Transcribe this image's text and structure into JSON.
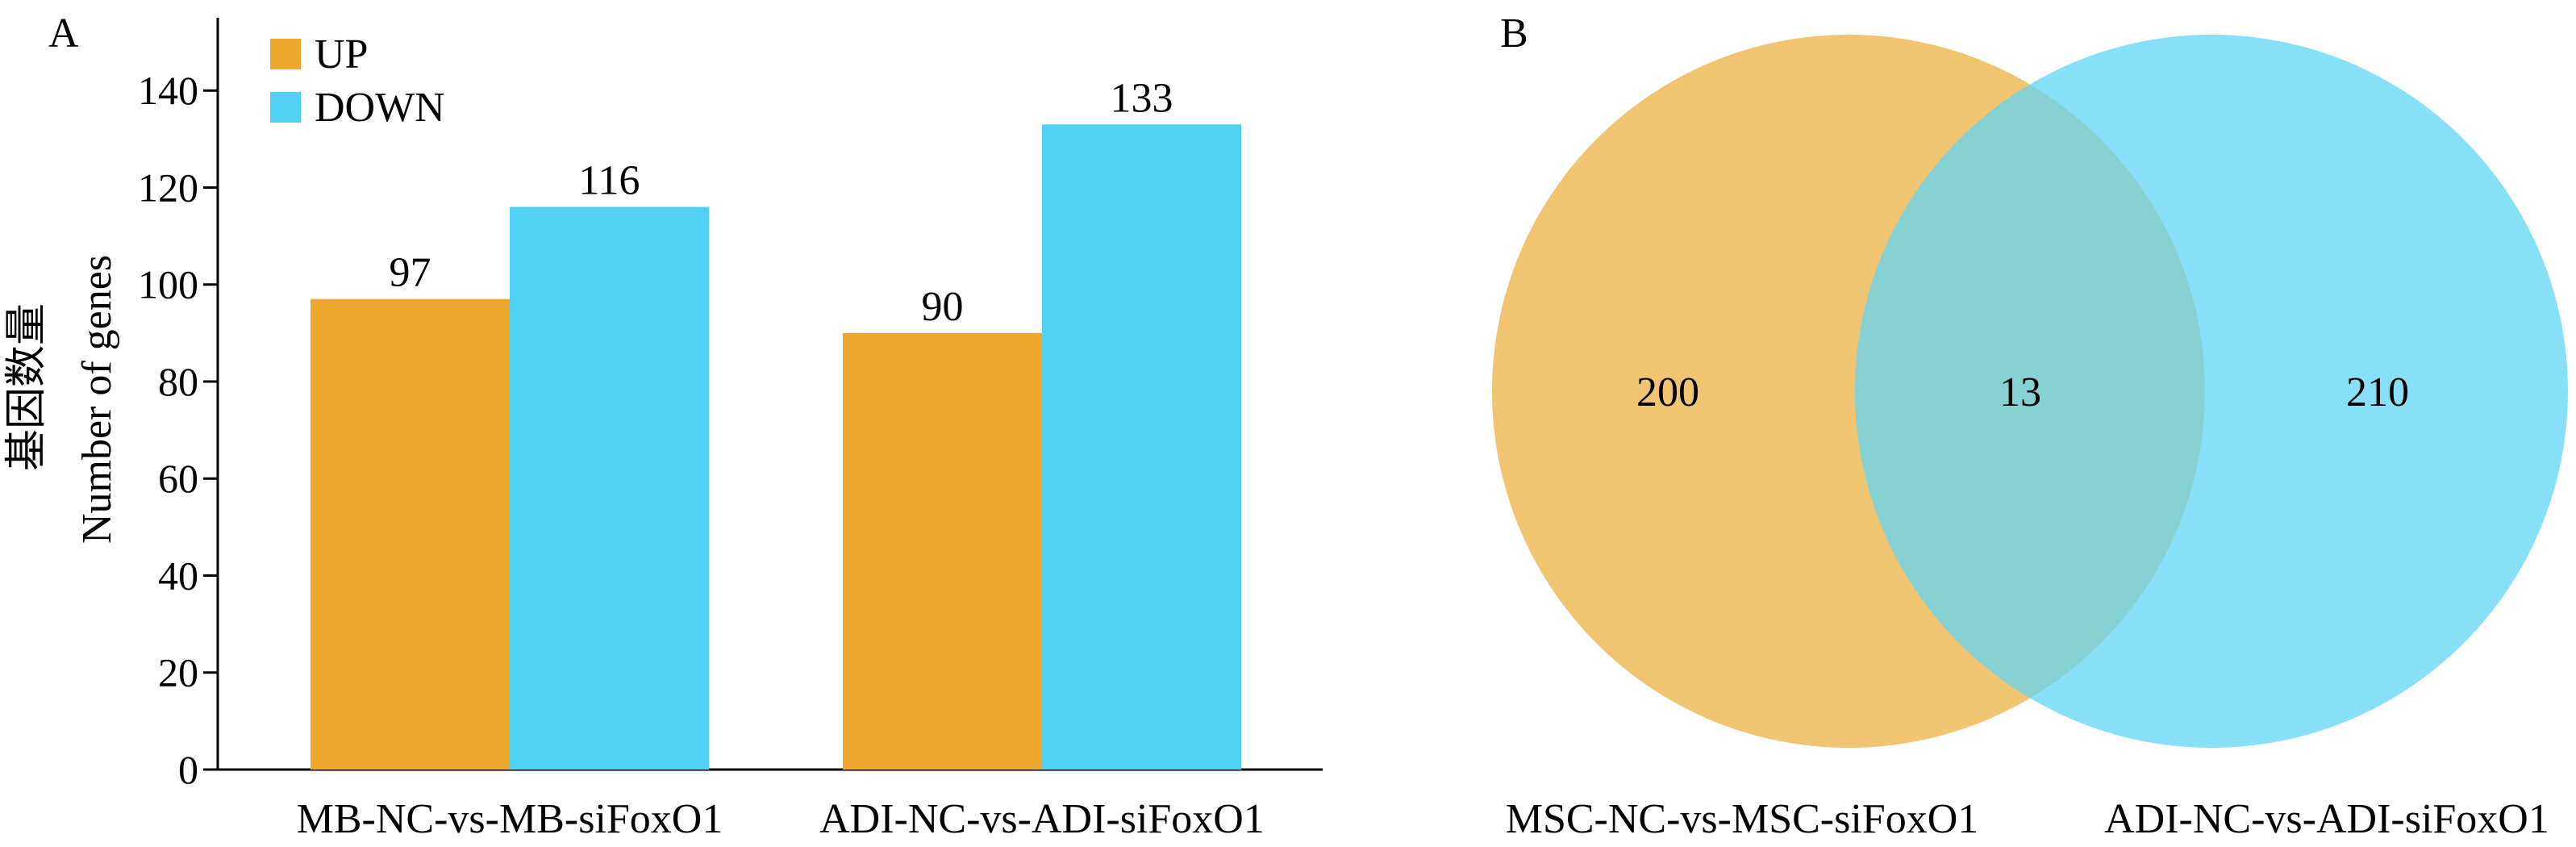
{
  "panels": {
    "a_label": "A",
    "b_label": "B"
  },
  "chart_data": [
    {
      "type": "bar",
      "categories": [
        "MB-NC-vs-MB-siFoxO1",
        "ADI-NC-vs-ADI-siFoxO1"
      ],
      "series": [
        {
          "name": "UP",
          "values": [
            97,
            90
          ],
          "color": "#eda72c"
        },
        {
          "name": "DOWN",
          "values": [
            116,
            133
          ],
          "color": "#4fd2f5"
        }
      ],
      "ylabel_zh": "基因数量",
      "ylabel_en": "Number of genes",
      "ylim": [
        0,
        155
      ],
      "yticks": [
        0,
        20,
        40,
        60,
        80,
        100,
        120,
        140
      ],
      "legend": "top-left",
      "grid": false
    },
    {
      "type": "venn",
      "sets": [
        {
          "name": "MSC-NC-vs-MSC-siFoxO1",
          "only": 200,
          "color": "#f0c470"
        },
        {
          "name": "ADI-NC-vs-ADI-siFoxO1",
          "only": 210,
          "color": "#88e0f8"
        }
      ],
      "intersection": 13,
      "intersection_color": "#85d1d4"
    }
  ]
}
